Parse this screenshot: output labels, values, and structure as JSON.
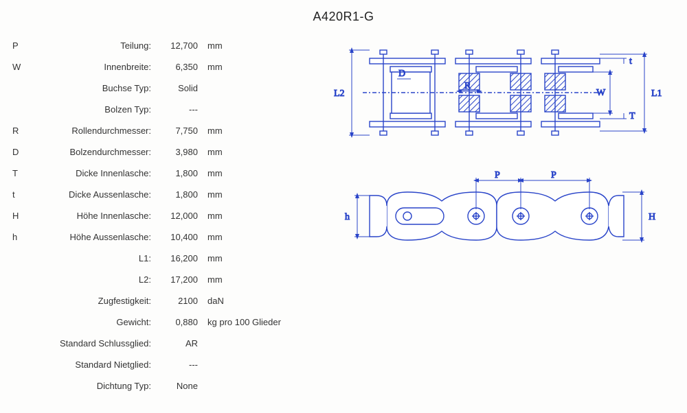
{
  "title": "A420R1-G",
  "specs": [
    {
      "sym": "P",
      "label": "Teilung:",
      "value": "12,700",
      "unit": "mm"
    },
    {
      "sym": "W",
      "label": "Innenbreite:",
      "value": "6,350",
      "unit": "mm"
    },
    {
      "sym": "",
      "label": "Buchse Typ:",
      "value": "Solid",
      "unit": ""
    },
    {
      "sym": "",
      "label": "Bolzen Typ:",
      "value": "---",
      "unit": ""
    },
    {
      "sym": "R",
      "label": "Rollendurchmesser:",
      "value": "7,750",
      "unit": "mm"
    },
    {
      "sym": "D",
      "label": "Bolzendurchmesser:",
      "value": "3,980",
      "unit": "mm"
    },
    {
      "sym": "T",
      "label": "Dicke Innenlasche:",
      "value": "1,800",
      "unit": "mm"
    },
    {
      "sym": "t",
      "label": "Dicke Aussenlasche:",
      "value": "1,800",
      "unit": "mm"
    },
    {
      "sym": "H",
      "label": "Höhe Innenlasche:",
      "value": "12,000",
      "unit": "mm"
    },
    {
      "sym": "h",
      "label": "Höhe Aussenlasche:",
      "value": "10,400",
      "unit": "mm"
    },
    {
      "sym": "",
      "label": "L1:",
      "value": "16,200",
      "unit": "mm"
    },
    {
      "sym": "",
      "label": "L2:",
      "value": "17,200",
      "unit": "mm"
    },
    {
      "sym": "",
      "label": "Zugfestigkeit:",
      "value": "2100",
      "unit": "daN"
    },
    {
      "sym": "",
      "label": "Gewicht:",
      "value": "0,880",
      "unit": "kg pro 100 Glieder"
    },
    {
      "sym": "",
      "label": "Standard Schlussglied:",
      "value": "AR",
      "unit": ""
    },
    {
      "sym": "",
      "label": "Standard Nietglied:",
      "value": "---",
      "unit": ""
    },
    {
      "sym": "",
      "label": "Dichtung Typ:",
      "value": "None",
      "unit": ""
    }
  ],
  "diagram": {
    "stroke": "#2944c9",
    "roller_fill": "#3a4fff",
    "hatch": "#2944c9",
    "bg": "#ffffff",
    "text_color": "#2944c9",
    "font_size": 14,
    "top": {
      "labels": {
        "L2": "L2",
        "L1": "L1",
        "D": "D",
        "R": "R",
        "W": "W",
        "T": "T",
        "t": "t"
      }
    },
    "side": {
      "labels": {
        "P": "P",
        "h": "h",
        "H": "H"
      }
    }
  }
}
